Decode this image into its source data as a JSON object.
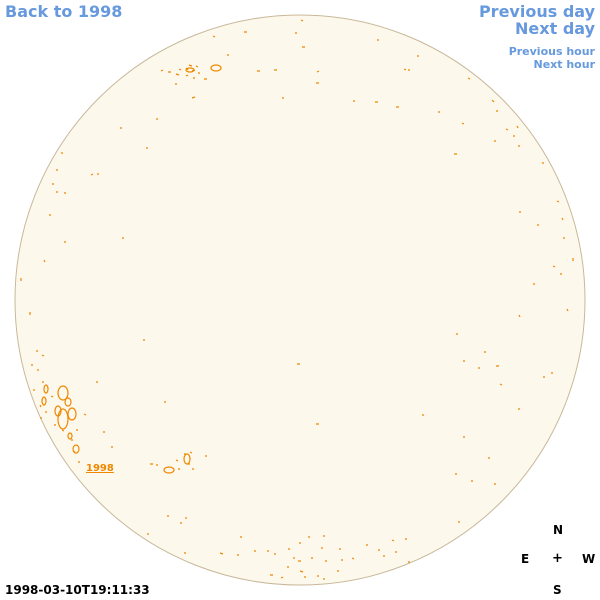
{
  "nav": {
    "back_label": "Back to 1998",
    "previous_day": "Previous day",
    "next_day": "Next day",
    "previous_hour": "Previous hour",
    "next_hour": "Next hour"
  },
  "compass": {
    "north": "N",
    "east": "E",
    "west": "W",
    "south": "S",
    "center": "+"
  },
  "timestamp": "1998-03-10T19:11:33",
  "region_label": "1998",
  "colors": {
    "disk_fill": "#fdf8ec",
    "disk_stroke": "#c8b89a",
    "feature": "#ee8800",
    "link": "#6699dd"
  }
}
